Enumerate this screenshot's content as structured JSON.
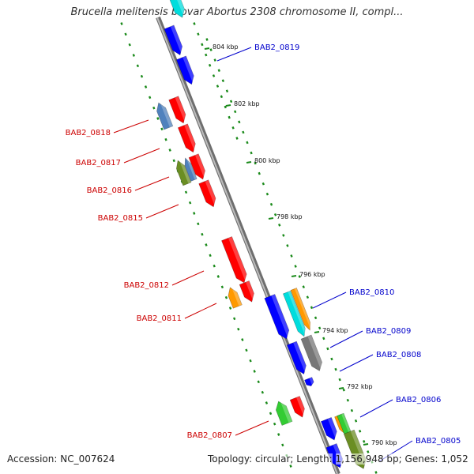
{
  "title": "Brucella melitensis biovar Abortus 2308 chromosome II, compl...",
  "footer": {
    "accession_label": "Accession:",
    "accession": "NC_007624",
    "topology_label": "Topology:",
    "topology": "circular;",
    "length_label": "Length:",
    "length": "1,156,948 bp;",
    "genes_label": "Genes:",
    "genes": "1,052"
  },
  "colors": {
    "forward_label": "#0000cc",
    "reverse_label": "#cc0000",
    "backbone": "#888888",
    "tick": "#1a8a1a",
    "red": "#ff0000",
    "blue": "#0000ff",
    "cyan": "#00dddd",
    "steelblue": "#4f81bd",
    "olive": "#6b8e23",
    "orange": "#ff9900",
    "green": "#33cc33",
    "gray": "#777777"
  },
  "ruler": {
    "unit": "kbp",
    "ticks": [
      "804 kbp",
      "802 kbp",
      "800 kbp",
      "798 kbp",
      "796 kbp",
      "794 kbp",
      "792 kbp",
      "790 kbp"
    ]
  },
  "forward_labels": [
    "BAB2_0819",
    "BAB2_0810",
    "BAB2_0809",
    "BAB2_0808",
    "BAB2_0806",
    "BAB2_0805"
  ],
  "reverse_labels": [
    "BAB2_0818",
    "BAB2_0817",
    "BAB2_0816",
    "BAB2_0815",
    "BAB2_0812",
    "BAB2_0811",
    "BAB2_0807"
  ]
}
